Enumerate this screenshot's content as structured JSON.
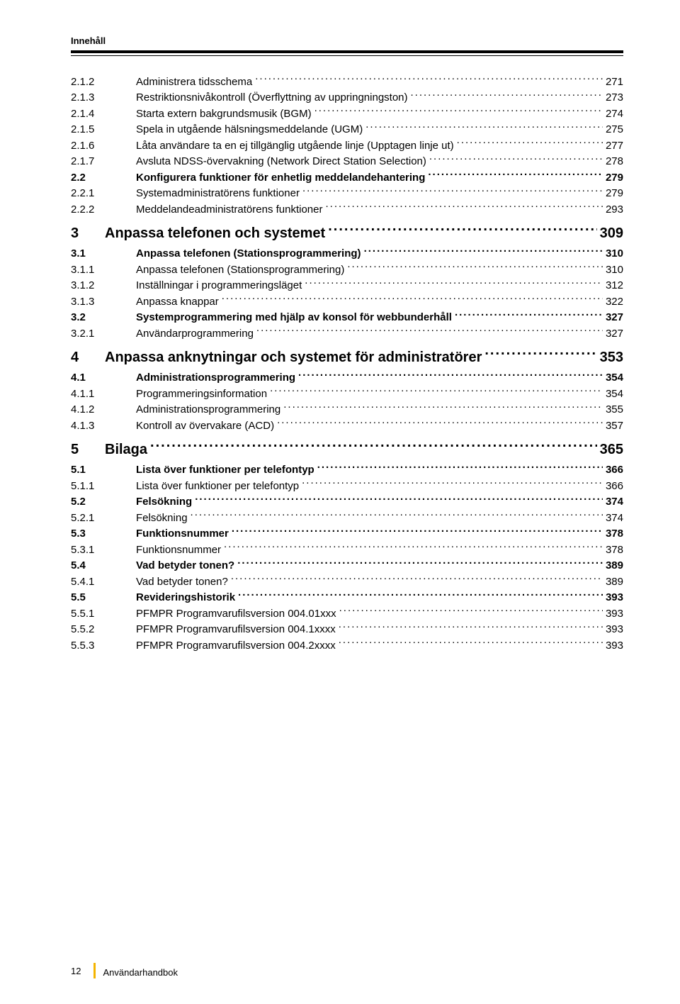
{
  "header": {
    "title": "Innehåll"
  },
  "footer": {
    "page_number": "12",
    "book_title": "Användarhandbok"
  },
  "colors": {
    "accent": "#f4b400",
    "text": "#000000",
    "bg": "#ffffff"
  },
  "toc": [
    {
      "level": 2,
      "num": "2.1.2",
      "title": "Administrera tidsschema",
      "page": "271"
    },
    {
      "level": 2,
      "num": "2.1.3",
      "title": "Restriktionsnivåkontroll (Överflyttning av uppringningston)",
      "page": "273"
    },
    {
      "level": 2,
      "num": "2.1.4",
      "title": "Starta extern bakgrundsmusik (BGM)",
      "page": "274"
    },
    {
      "level": 2,
      "num": "2.1.5",
      "title": "Spela in utgående hälsningsmeddelande (UGM)",
      "page": "275"
    },
    {
      "level": 2,
      "num": "2.1.6",
      "title": "Låta användare ta en ej tillgänglig utgående linje (Upptagen linje ut)",
      "page": "277"
    },
    {
      "level": 2,
      "num": "2.1.7",
      "title": "Avsluta NDSS-övervakning (Network Direct Station Selection)",
      "page": "278"
    },
    {
      "level": 1,
      "num": "2.2",
      "title": "Konfigurera funktioner för enhetlig meddelandehantering",
      "page": "279"
    },
    {
      "level": 2,
      "num": "2.2.1",
      "title": "Systemadministratörens funktioner",
      "page": "279"
    },
    {
      "level": 2,
      "num": "2.2.2",
      "title": "Meddelandeadministratörens funktioner",
      "page": "293"
    },
    {
      "level": 0,
      "num": "3",
      "title": "Anpassa telefonen och systemet",
      "page": "309"
    },
    {
      "level": 1,
      "num": "3.1",
      "title": "Anpassa telefonen (Stationsprogrammering)",
      "page": "310"
    },
    {
      "level": 2,
      "num": "3.1.1",
      "title": "Anpassa telefonen (Stationsprogrammering)",
      "page": "310"
    },
    {
      "level": 2,
      "num": "3.1.2",
      "title": "Inställningar i programmeringsläget",
      "page": "312"
    },
    {
      "level": 2,
      "num": "3.1.3",
      "title": "Anpassa knappar",
      "page": "322"
    },
    {
      "level": 1,
      "num": "3.2",
      "title": "Systemprogrammering med hjälp av konsol för webbunderhåll",
      "page": "327"
    },
    {
      "level": 2,
      "num": "3.2.1",
      "title": "Användarprogrammering",
      "page": "327"
    },
    {
      "level": 0,
      "num": "4",
      "title": "Anpassa anknytningar och systemet för administratörer",
      "page": "353"
    },
    {
      "level": 1,
      "num": "4.1",
      "title": "Administrationsprogrammering",
      "page": "354"
    },
    {
      "level": 2,
      "num": "4.1.1",
      "title": "Programmeringsinformation",
      "page": "354"
    },
    {
      "level": 2,
      "num": "4.1.2",
      "title": "Administrationsprogrammering",
      "page": "355"
    },
    {
      "level": 2,
      "num": "4.1.3",
      "title": "Kontroll av övervakare (ACD)",
      "page": "357"
    },
    {
      "level": 0,
      "num": "5",
      "title": "Bilaga",
      "page": "365"
    },
    {
      "level": 1,
      "num": "5.1",
      "title": "Lista över funktioner per telefontyp",
      "page": "366"
    },
    {
      "level": 2,
      "num": "5.1.1",
      "title": "Lista över funktioner per telefontyp",
      "page": "366"
    },
    {
      "level": 1,
      "num": "5.2",
      "title": "Felsökning",
      "page": "374"
    },
    {
      "level": 2,
      "num": "5.2.1",
      "title": "Felsökning",
      "page": "374"
    },
    {
      "level": 1,
      "num": "5.3",
      "title": "Funktionsnummer",
      "page": "378"
    },
    {
      "level": 2,
      "num": "5.3.1",
      "title": "Funktionsnummer",
      "page": "378"
    },
    {
      "level": 1,
      "num": "5.4",
      "title": "Vad betyder tonen?",
      "page": "389"
    },
    {
      "level": 2,
      "num": "5.4.1",
      "title": "Vad betyder tonen?",
      "page": "389"
    },
    {
      "level": 1,
      "num": "5.5",
      "title": "Revideringshistorik",
      "page": "393"
    },
    {
      "level": 2,
      "num": "5.5.1",
      "title": "PFMPR Programvarufilsversion 004.01xxx",
      "page": "393"
    },
    {
      "level": 2,
      "num": "5.5.2",
      "title": "PFMPR Programvarufilsversion 004.1xxxx",
      "page": "393"
    },
    {
      "level": 2,
      "num": "5.5.3",
      "title": "PFMPR Programvarufilsversion 004.2xxxx",
      "page": "393"
    }
  ]
}
